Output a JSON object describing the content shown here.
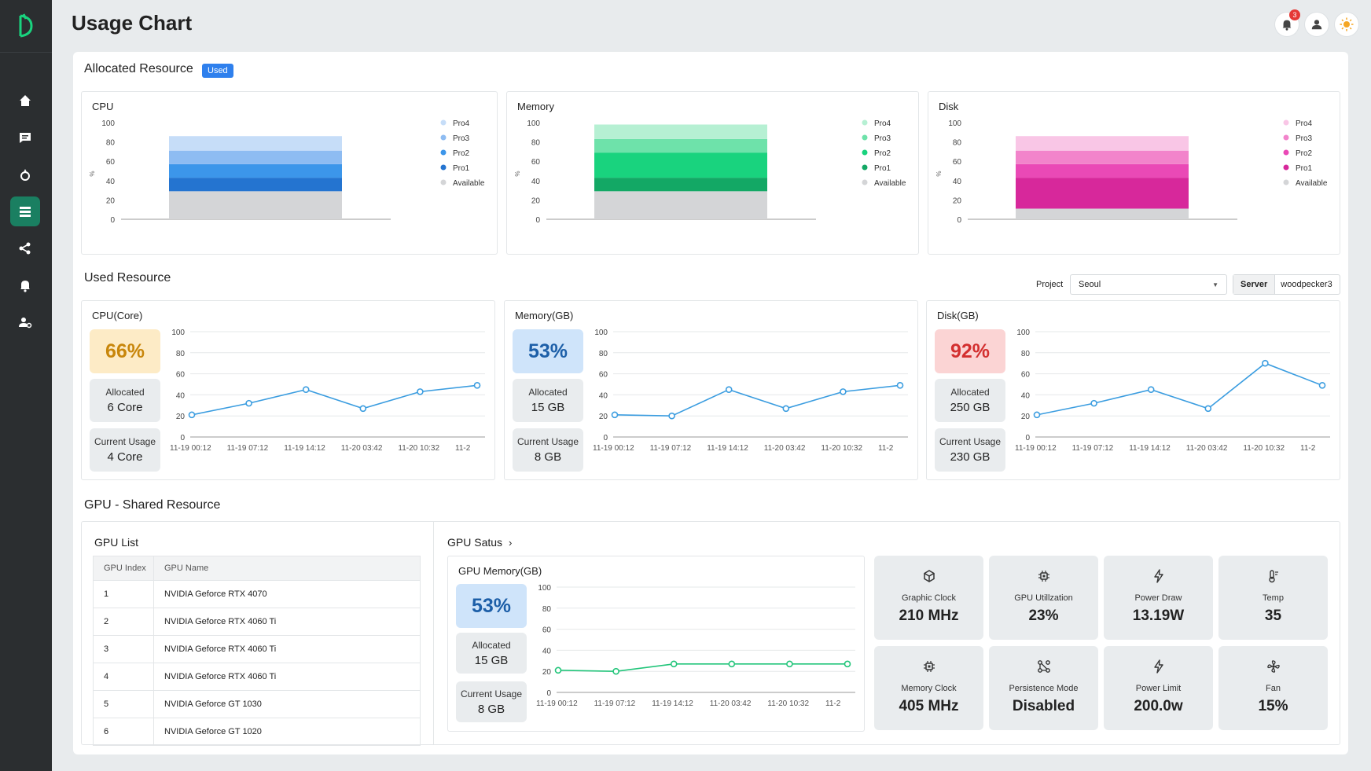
{
  "page_title": "Usage Chart",
  "notifications_count": "3",
  "colors": {
    "accent": "#1a7f61",
    "blue": "#2f80ed",
    "cpu_line": "#3b9de0",
    "gpu_line": "#22c57a"
  },
  "sidebar": {
    "items": [
      {
        "icon": "home-icon"
      },
      {
        "icon": "message-icon"
      },
      {
        "icon": "deploy-icon"
      },
      {
        "icon": "list-icon",
        "active": true
      },
      {
        "icon": "share-icon"
      },
      {
        "icon": "bell-icon"
      },
      {
        "icon": "user-settings-icon"
      }
    ]
  },
  "allocated": {
    "title": "Allocated Resource",
    "chip": "Used",
    "legend": [
      "Pro4",
      "Pro3",
      "Pro2",
      "Pro1",
      "Available"
    ],
    "y_ticks": [
      "100",
      "80",
      "60",
      "40",
      "20",
      "0"
    ],
    "y_unit": "%"
  },
  "used": {
    "title": "Used Resource",
    "project_label": "Project",
    "project_value": "Seoul",
    "server_label": "Server",
    "server_value": "woodpecker3",
    "y_ticks": [
      "100",
      "80",
      "60",
      "40",
      "20",
      "0"
    ],
    "x_ticks": [
      "11-19 00:12",
      "11-19 07:12",
      "11-19 14:12",
      "11-20 03:42",
      "11-20 10:32",
      "11-2"
    ],
    "allocated_label": "Allocated",
    "current_label": "Current Usage",
    "cards": [
      {
        "title": "CPU(Core)",
        "percent": "66%",
        "allocated": "6 Core",
        "current": "4 Core"
      },
      {
        "title": "Memory(GB)",
        "percent": "53%",
        "allocated": "15 GB",
        "current": "8 GB"
      },
      {
        "title": "Disk(GB)",
        "percent": "92%",
        "allocated": "250 GB",
        "current": "230 GB"
      }
    ]
  },
  "gpu": {
    "title": "GPU - Shared Resource",
    "list_title": "GPU List",
    "columns": [
      "GPU Index",
      "GPU Name"
    ],
    "rows": [
      [
        "1",
        "NVIDIA Geforce RTX 4070"
      ],
      [
        "2",
        "NVIDIA Geforce RTX 4060 Ti"
      ],
      [
        "3",
        "NVIDIA Geforce RTX 4060 Ti"
      ],
      [
        "4",
        "NVIDIA Geforce RTX 4060 Ti"
      ],
      [
        "5",
        "NVIDIA Geforce GT 1030"
      ],
      [
        "6",
        "NVIDIA Geforce GT 1020"
      ]
    ],
    "status_title": "GPU Satus",
    "memory_card": {
      "title": "GPU Memory(GB)",
      "percent": "53%",
      "allocated": "15 GB",
      "current": "8 GB"
    },
    "tiles": [
      {
        "icon": "cube-icon",
        "label": "Graphic Clock",
        "value": "210 MHz"
      },
      {
        "icon": "chip-icon",
        "label": "GPU Utillzation",
        "value": "23%"
      },
      {
        "icon": "bolt-icon",
        "label": "Power Draw",
        "value": "13.19W"
      },
      {
        "icon": "thermometer-icon",
        "label": "Temp",
        "value": "35"
      },
      {
        "icon": "chip-icon",
        "label": "Memory Clock",
        "value": "405 MHz"
      },
      {
        "icon": "persistence-icon",
        "label": "Persistence Mode",
        "value": "Disabled"
      },
      {
        "icon": "bolt-icon",
        "label": "Power Limit",
        "value": "200.0w"
      },
      {
        "icon": "fan-icon",
        "label": "Fan",
        "value": "15%"
      }
    ]
  },
  "chart_data": [
    {
      "type": "bar",
      "title": "CPU",
      "stacked": true,
      "ylabel": "%",
      "ylim": [
        0,
        100
      ],
      "categories": [
        ""
      ],
      "series": [
        {
          "name": "Available",
          "values": [
            29
          ]
        },
        {
          "name": "Pro1",
          "values": [
            14
          ]
        },
        {
          "name": "Pro2",
          "values": [
            14
          ]
        },
        {
          "name": "Pro3",
          "values": [
            14
          ]
        },
        {
          "name": "Pro4",
          "values": [
            15
          ]
        }
      ],
      "colors": [
        "#d4d5d7",
        "#2474d0",
        "#3c96ea",
        "#8ebcf2",
        "#c6ddf8"
      ],
      "legend": "right"
    },
    {
      "type": "bar",
      "title": "Memory",
      "stacked": true,
      "ylabel": "%",
      "ylim": [
        0,
        100
      ],
      "categories": [
        ""
      ],
      "series": [
        {
          "name": "Available",
          "values": [
            29
          ]
        },
        {
          "name": "Pro1",
          "values": [
            14
          ]
        },
        {
          "name": "Pro2",
          "values": [
            26
          ]
        },
        {
          "name": "Pro3",
          "values": [
            14
          ]
        },
        {
          "name": "Pro4",
          "values": [
            15
          ]
        }
      ],
      "colors": [
        "#d4d5d7",
        "#13a865",
        "#19d37e",
        "#6ee2aa",
        "#b6f0d3"
      ],
      "legend": "right"
    },
    {
      "type": "bar",
      "title": "Disk",
      "stacked": true,
      "ylabel": "%",
      "ylim": [
        0,
        100
      ],
      "categories": [
        ""
      ],
      "series": [
        {
          "name": "Available",
          "values": [
            11
          ]
        },
        {
          "name": "Pro1",
          "values": [
            32
          ]
        },
        {
          "name": "Pro2",
          "values": [
            14
          ]
        },
        {
          "name": "Pro3",
          "values": [
            14
          ]
        },
        {
          "name": "Pro4",
          "values": [
            15
          ]
        }
      ],
      "colors": [
        "#d4d5d7",
        "#d7289b",
        "#ea49b6",
        "#f284cb",
        "#f9c6e6"
      ],
      "legend": "right"
    },
    {
      "type": "line",
      "title": "CPU(Core)",
      "ylim": [
        0,
        100
      ],
      "x": [
        "11-19 00:12",
        "11-19 07:12",
        "11-19 14:12",
        "11-20 03:42",
        "11-20 10:32",
        "11-2"
      ],
      "values": [
        21,
        32,
        45,
        27,
        43,
        49
      ]
    },
    {
      "type": "line",
      "title": "Memory(GB)",
      "ylim": [
        0,
        100
      ],
      "x": [
        "11-19 00:12",
        "11-19 07:12",
        "11-19 14:12",
        "11-20 03:42",
        "11-20 10:32",
        "11-2"
      ],
      "values": [
        21,
        20,
        45,
        27,
        43,
        49
      ]
    },
    {
      "type": "line",
      "title": "Disk(GB)",
      "ylim": [
        0,
        100
      ],
      "x": [
        "11-19 00:12",
        "11-19 07:12",
        "11-19 14:12",
        "11-20 03:42",
        "11-20 10:32",
        "11-2"
      ],
      "values": [
        21,
        32,
        45,
        27,
        70,
        49
      ]
    },
    {
      "type": "line",
      "title": "GPU Memory(GB)",
      "ylim": [
        0,
        100
      ],
      "x": [
        "11-19 00:12",
        "11-19 07:12",
        "11-19 14:12",
        "11-20 03:42",
        "11-20 10:32",
        "11-2"
      ],
      "values": [
        21,
        20,
        27,
        27,
        27,
        27
      ]
    }
  ]
}
